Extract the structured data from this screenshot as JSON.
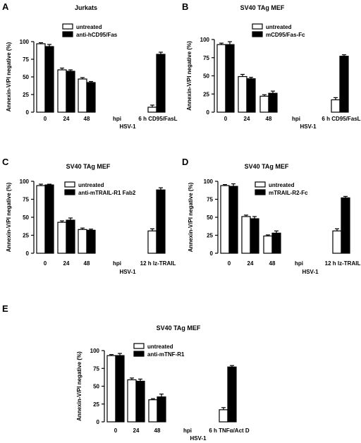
{
  "colors": {
    "untreated": "#ffffff",
    "treated": "#000000",
    "stroke": "#000000"
  },
  "chart_data": [
    {
      "panel": "A",
      "type": "bar",
      "title": "Jurkats",
      "ylabel": "Annexin-V/PI negative (%)",
      "ylim": [
        0,
        100
      ],
      "yticks": [
        0,
        25,
        50,
        75,
        100
      ],
      "xtick_labels": [
        "0",
        "24",
        "48",
        "hpi",
        "6 h CD95/FasL"
      ],
      "xlabel": "HSV-1",
      "legend_position": "top-left",
      "series": [
        {
          "name": "untreated",
          "values": [
            97,
            60,
            47,
            7
          ],
          "errors": [
            1.5,
            2.5,
            2,
            3
          ]
        },
        {
          "name": "anti-hCD95/Fas",
          "values": [
            93,
            58,
            42,
            82
          ],
          "errors": [
            3,
            2,
            1.5,
            3
          ]
        }
      ]
    },
    {
      "panel": "B",
      "type": "bar",
      "title": "SV40 TAg MEF",
      "ylabel": "Annexin-V/PI negative (%)",
      "ylim": [
        0,
        100
      ],
      "yticks": [
        0,
        25,
        50,
        75,
        100
      ],
      "xtick_labels": [
        "0",
        "24",
        "48",
        "hpi",
        "6 h CD95/FasL"
      ],
      "xlabel": "HSV-1",
      "legend_position": "top-left",
      "series": [
        {
          "name": "untreated",
          "values": [
            93,
            49,
            22,
            17
          ],
          "errors": [
            2,
            3,
            2,
            3
          ]
        },
        {
          "name": "mCD95/Fas-Fc",
          "values": [
            93,
            46,
            26,
            77
          ],
          "errors": [
            4,
            2,
            3,
            2
          ]
        }
      ]
    },
    {
      "panel": "C",
      "type": "bar",
      "title": "SV40 TAg MEF",
      "ylabel": "Annexin-V/PI negative (%)",
      "ylim": [
        0,
        100
      ],
      "yticks": [
        0,
        25,
        50,
        75,
        100
      ],
      "xtick_labels": [
        "0",
        "24",
        "48",
        "hpi",
        "12 h lz-TRAIL"
      ],
      "xlabel": "HSV-1",
      "legend_position": "top-left",
      "series": [
        {
          "name": "untreated",
          "values": [
            94,
            43,
            33,
            31
          ],
          "errors": [
            2,
            2,
            2,
            3
          ]
        },
        {
          "name": "anti-mTRAIL-R1 Fab2",
          "values": [
            95,
            46,
            32,
            88
          ],
          "errors": [
            1,
            3,
            1.5,
            3
          ]
        }
      ]
    },
    {
      "panel": "D",
      "type": "bar",
      "title": "SV40 TAg MEF",
      "ylabel": "Annexin-V/PI negative (%)",
      "ylim": [
        0,
        100
      ],
      "yticks": [
        0,
        25,
        50,
        75,
        100
      ],
      "xtick_labels": [
        "0",
        "24",
        "48",
        "hpi",
        "12 h lz-TRAIL"
      ],
      "xlabel": "HSV-1",
      "legend_position": "top-left",
      "series": [
        {
          "name": "untreated",
          "values": [
            94,
            51,
            24,
            31
          ],
          "errors": [
            1.5,
            2,
            1.5,
            3
          ]
        },
        {
          "name": "mTRAIL-R2-Fc",
          "values": [
            93,
            48,
            28,
            77
          ],
          "errors": [
            3.5,
            3,
            3,
            2
          ]
        }
      ]
    },
    {
      "panel": "E",
      "type": "bar",
      "title": "SV40 TAg MEF",
      "ylabel": "Annexin-V/PI negative (%)",
      "ylim": [
        0,
        100
      ],
      "yticks": [
        0,
        25,
        50,
        75,
        100
      ],
      "xtick_labels": [
        "0",
        "24",
        "48",
        "hpi",
        "6 h TNFα/Act D"
      ],
      "xlabel": "HSV-1",
      "legend_position": "top-left",
      "series": [
        {
          "name": "untreated",
          "values": [
            93,
            59,
            31,
            17
          ],
          "errors": [
            1.5,
            2.5,
            1.5,
            3
          ]
        },
        {
          "name": "anti-mTNF-R1",
          "values": [
            93,
            57,
            35,
            77
          ],
          "errors": [
            3,
            3,
            4,
            2
          ]
        }
      ]
    }
  ]
}
